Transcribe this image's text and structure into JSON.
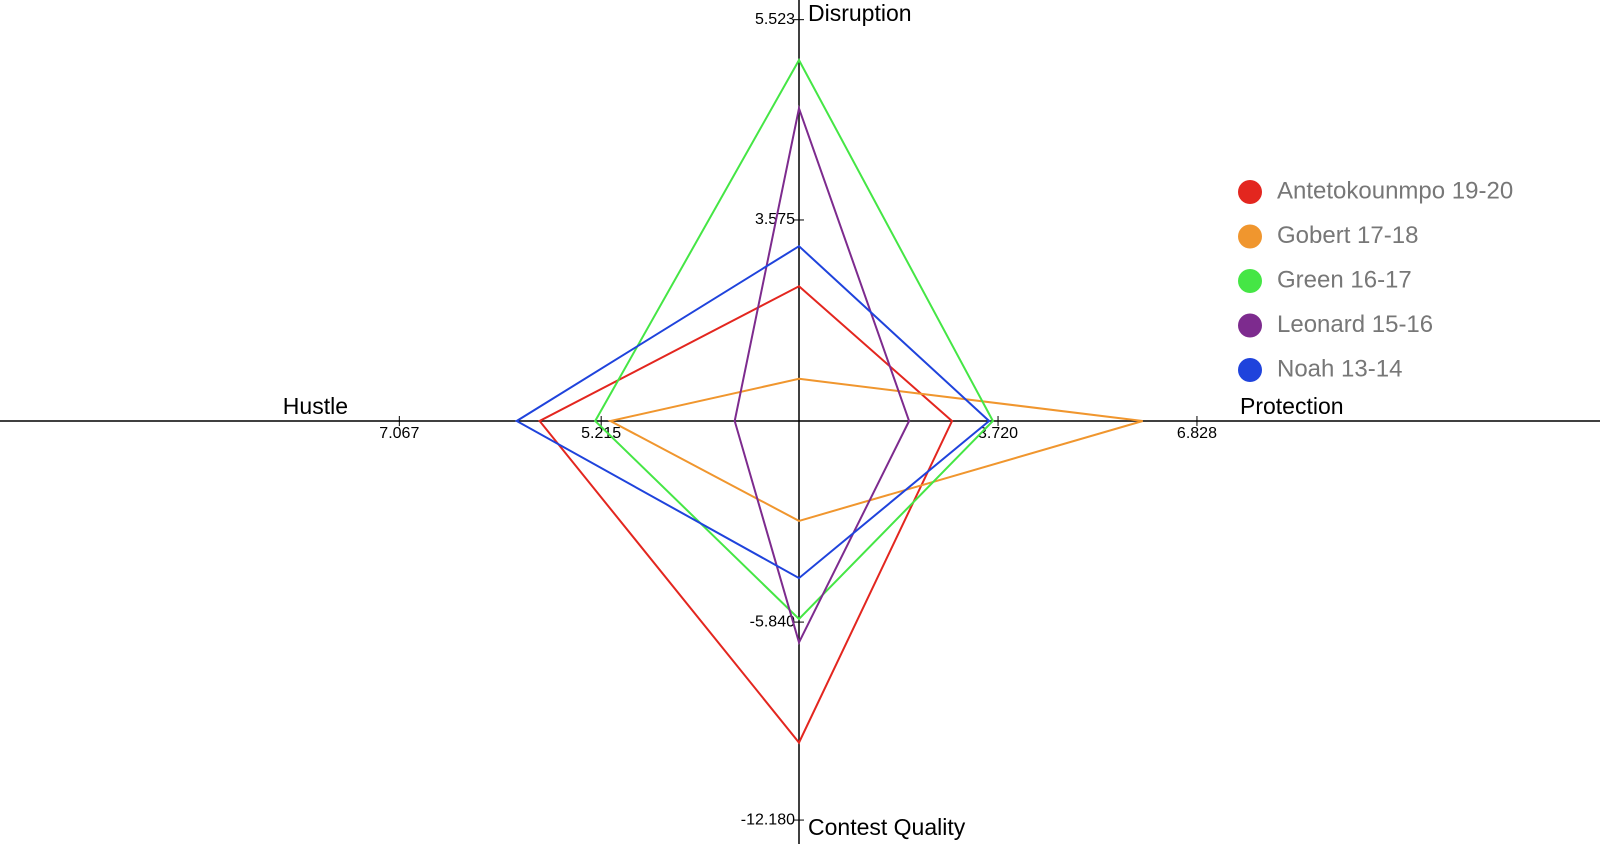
{
  "chart_data": {
    "type": "radar",
    "axes": [
      {
        "name": "Disruption",
        "lim": [
          1.62,
          5.51
        ],
        "ticks": [
          3.575,
          5.523
        ]
      },
      {
        "name": "Protection",
        "lim": [
          0.61,
          6.86
        ],
        "ticks": [
          {
            "value": 3.72,
            "label": "3.720"
          },
          6.828
        ]
      },
      {
        "name": "Contest Quality",
        "lim": [
          0.6,
          -12.21
        ],
        "ticks": [
          {
            "value": -5.84,
            "label": "-5.840"
          },
          {
            "value": -12.18,
            "label": "-12.180"
          }
        ]
      },
      {
        "name": "Hustle",
        "lim": [
          3.4,
          7.07
        ],
        "ticks": [
          5.215,
          7.067
        ]
      }
    ],
    "series": [
      {
        "name": "Antetokounmpo 19-20",
        "color": "#e3261f",
        "values": [
          2.93,
          3.0,
          -9.7,
          5.78
        ]
      },
      {
        "name": "Gobert 17-18",
        "color": "#f0962e",
        "values": [
          2.03,
          5.98,
          -2.6,
          5.13
        ]
      },
      {
        "name": "Green 16-17",
        "color": "#45e645",
        "values": [
          5.13,
          3.64,
          -5.74,
          5.27
        ]
      },
      {
        "name": "Leonard 15-16",
        "color": "#7d2b8e",
        "values": [
          4.66,
          2.33,
          -6.49,
          3.99
        ]
      },
      {
        "name": "Noah 13-14",
        "color": "#1f43dc",
        "values": [
          3.32,
          3.58,
          -4.43,
          5.99
        ]
      }
    ]
  }
}
